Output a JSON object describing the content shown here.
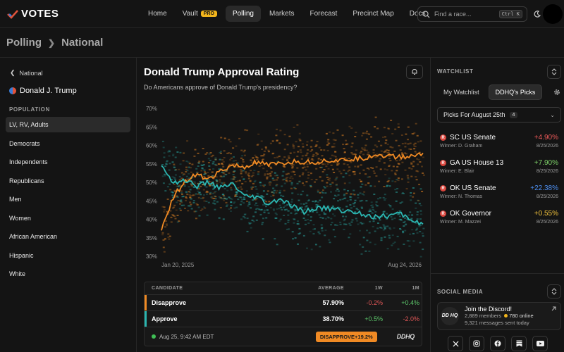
{
  "app": {
    "logo_text": "VOTES"
  },
  "nav": {
    "items": [
      {
        "label": "Home"
      },
      {
        "label": "Vault",
        "badge": "PRO"
      },
      {
        "label": "Polling",
        "active": true
      },
      {
        "label": "Markets"
      },
      {
        "label": "Forecast"
      },
      {
        "label": "Precinct Map"
      },
      {
        "label": "Docs"
      }
    ],
    "search_placeholder": "Find a race...",
    "search_shortcut": "Ctrl K"
  },
  "breadcrumb": {
    "root": "Polling",
    "current": "National"
  },
  "sidebar": {
    "back_label": "National",
    "candidate": "Donald J. Trump",
    "section_label": "POPULATION",
    "items": [
      "LV, RV, Adults",
      "Democrats",
      "Independents",
      "Republicans",
      "Men",
      "Women",
      "African American",
      "Hispanic",
      "White"
    ]
  },
  "main": {
    "title": "Donald Trump Approval Rating",
    "subtitle": "Do Americans approve of Donald Trump's presidency?"
  },
  "chart_data": {
    "type": "line",
    "x_start_label": "Jan 20, 2025",
    "x_end_label": "Aug 24, 2026",
    "ylim": [
      30,
      70
    ],
    "yticks": [
      "70%",
      "65%",
      "60%",
      "55%",
      "50%",
      "45%",
      "40%",
      "35%",
      "30%"
    ],
    "series": [
      {
        "name": "Disapprove",
        "color": "#f08a24",
        "values": [
          37,
          46,
          50.5,
          52,
          51,
          53,
          54.5,
          54,
          55.5,
          54.5,
          55,
          55.5,
          55.5,
          55.5,
          56,
          55.8,
          56.3,
          56.5,
          57.5,
          57.2,
          56.8,
          57,
          57.9
        ]
      },
      {
        "name": "Approve",
        "color": "#2bb5b0",
        "values": [
          54.5,
          50,
          50.5,
          49,
          50,
          48.5,
          49.5,
          46,
          46,
          44,
          45.5,
          43.5,
          42,
          43,
          43,
          42.5,
          42,
          41.5,
          40.5,
          41,
          41.5,
          40,
          38.7
        ]
      }
    ]
  },
  "table": {
    "headers": {
      "candidate": "CANDIDATE",
      "average": "AVERAGE",
      "w1": "1W",
      "m1": "1M"
    },
    "rows": [
      {
        "name": "Disapprove",
        "average": "57.90%",
        "w1": "-0.2%",
        "m1": "+0.4%",
        "color": "#f08a24"
      },
      {
        "name": "Approve",
        "average": "38.70%",
        "w1": "+0.5%",
        "m1": "-2.0%",
        "color": "#2bb5b0"
      }
    ],
    "timestamp": "Aug 25, 9:42 AM EDT",
    "badge": "DISAPPROVE+19.2%",
    "brand": "DDHQ"
  },
  "watchlist": {
    "header": "WATCHLIST",
    "tabs": [
      "My Watchlist",
      "DDHQ's Picks"
    ],
    "picks_label": "Picks For August 25th",
    "picks_count": "4",
    "races": [
      {
        "title": "SC US Senate",
        "winner": "Winner: D. Graham",
        "value": "+4.90%",
        "date": "8/25/2026",
        "value_color": "red"
      },
      {
        "title": "GA US House 13",
        "winner": "Winner: E. Blair",
        "value": "+7.90%",
        "date": "8/25/2026",
        "value_color": "green"
      },
      {
        "title": "OK US Senate",
        "winner": "Winner: N. Thomas",
        "value": "+22.38%",
        "date": "8/25/2026",
        "value_color": "blue"
      },
      {
        "title": "OK Governor",
        "winner": "Winner: M. Mazzei",
        "value": "+0.55%",
        "date": "8/25/2026",
        "value_color": "yellow"
      }
    ]
  },
  "social": {
    "header": "SOCIAL MEDIA",
    "discord_title": "Join the Discord!",
    "members": "2,889 members",
    "online": "780 online",
    "messages": "9,321 messages sent today",
    "discord_logo": "DD HQ",
    "icons": [
      "x-icon",
      "instagram-icon",
      "facebook-icon",
      "substack-icon",
      "youtube-icon"
    ]
  }
}
